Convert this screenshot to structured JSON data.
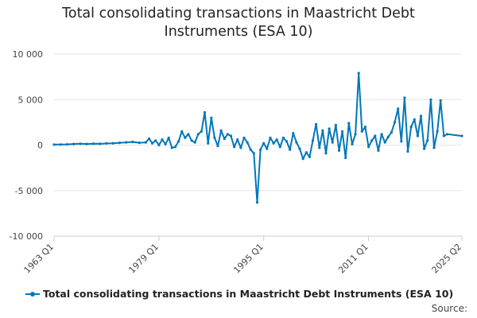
{
  "chart_data": {
    "type": "line",
    "title": "Total consolidating transactions in Maastricht Debt Instruments (ESA 10)",
    "xlabel": "",
    "ylabel": "",
    "x_range": [
      "1963 Q1",
      "2025 Q2"
    ],
    "x_ticks": [
      "1963 Q1",
      "1979 Q1",
      "1995 Q1",
      "2011 Q1",
      "2025 Q2"
    ],
    "ylim": [
      -10000,
      10000
    ],
    "y_ticks": [
      -10000,
      -5000,
      0,
      5000,
      10000
    ],
    "y_tick_labels": [
      "-10 000",
      "-5 000",
      "0",
      "5 000",
      "10 000"
    ],
    "grid": true,
    "legend_position": "bottom",
    "series": [
      {
        "name": "Total consolidating transactions in Maastricht Debt Instruments (ESA 10)",
        "color": "#0077bb",
        "points": [
          [
            "1963 Q1",
            50
          ],
          [
            "1964 Q1",
            60
          ],
          [
            "1965 Q1",
            80
          ],
          [
            "1966 Q1",
            120
          ],
          [
            "1967 Q1",
            150
          ],
          [
            "1968 Q1",
            120
          ],
          [
            "1969 Q1",
            160
          ],
          [
            "1970 Q1",
            140
          ],
          [
            "1971 Q1",
            180
          ],
          [
            "1972 Q1",
            200
          ],
          [
            "1973 Q1",
            250
          ],
          [
            "1974 Q1",
            300
          ],
          [
            "1975 Q1",
            350
          ],
          [
            "1976 Q1",
            250
          ],
          [
            "1977 Q1",
            300
          ],
          [
            "1977 Q3",
            700
          ],
          [
            "1978 Q1",
            200
          ],
          [
            "1978 Q3",
            500
          ],
          [
            "1979 Q1",
            0
          ],
          [
            "1979 Q3",
            600
          ],
          [
            "1980 Q1",
            100
          ],
          [
            "1980 Q3",
            800
          ],
          [
            "1981 Q1",
            -300
          ],
          [
            "1981 Q3",
            -200
          ],
          [
            "1982 Q1",
            400
          ],
          [
            "1982 Q3",
            1500
          ],
          [
            "1983 Q1",
            800
          ],
          [
            "1983 Q3",
            1200
          ],
          [
            "1984 Q1",
            500
          ],
          [
            "1984 Q3",
            300
          ],
          [
            "1985 Q1",
            1200
          ],
          [
            "1985 Q3",
            1500
          ],
          [
            "1986 Q1",
            3600
          ],
          [
            "1986 Q3",
            200
          ],
          [
            "1987 Q1",
            3000
          ],
          [
            "1987 Q3",
            800
          ],
          [
            "1988 Q1",
            -100
          ],
          [
            "1988 Q3",
            1600
          ],
          [
            "1989 Q1",
            700
          ],
          [
            "1989 Q3",
            1200
          ],
          [
            "1990 Q1",
            1000
          ],
          [
            "1990 Q3",
            -200
          ],
          [
            "1991 Q1",
            600
          ],
          [
            "1991 Q3",
            -300
          ],
          [
            "1992 Q1",
            800
          ],
          [
            "1992 Q3",
            300
          ],
          [
            "1993 Q1",
            -500
          ],
          [
            "1993 Q3",
            -900
          ],
          [
            "1994 Q1",
            -6300
          ],
          [
            "1994 Q3",
            -500
          ],
          [
            "1995 Q1",
            200
          ],
          [
            "1995 Q3",
            -400
          ],
          [
            "1996 Q1",
            800
          ],
          [
            "1996 Q3",
            200
          ],
          [
            "1997 Q1",
            600
          ],
          [
            "1997 Q3",
            -200
          ],
          [
            "1998 Q1",
            800
          ],
          [
            "1998 Q3",
            400
          ],
          [
            "1999 Q1",
            -500
          ],
          [
            "1999 Q3",
            1300
          ],
          [
            "2000 Q1",
            300
          ],
          [
            "2000 Q3",
            -400
          ],
          [
            "2001 Q1",
            -1500
          ],
          [
            "2001 Q3",
            -800
          ],
          [
            "2002 Q1",
            -1300
          ],
          [
            "2002 Q3",
            500
          ],
          [
            "2003 Q1",
            2300
          ],
          [
            "2003 Q3",
            -300
          ],
          [
            "2004 Q1",
            1600
          ],
          [
            "2004 Q3",
            -900
          ],
          [
            "2005 Q1",
            1800
          ],
          [
            "2005 Q3",
            300
          ],
          [
            "2006 Q1",
            2200
          ],
          [
            "2006 Q3",
            -600
          ],
          [
            "2007 Q1",
            1500
          ],
          [
            "2007 Q3",
            -1400
          ],
          [
            "2008 Q1",
            2400
          ],
          [
            "2008 Q3",
            100
          ],
          [
            "2009 Q1",
            1200
          ],
          [
            "2009 Q3",
            7900
          ],
          [
            "2010 Q1",
            1500
          ],
          [
            "2010 Q3",
            2000
          ],
          [
            "2011 Q1",
            -200
          ],
          [
            "2011 Q3",
            500
          ],
          [
            "2012 Q1",
            1000
          ],
          [
            "2012 Q3",
            -600
          ],
          [
            "2013 Q1",
            1200
          ],
          [
            "2013 Q3",
            300
          ],
          [
            "2014 Q1",
            900
          ],
          [
            "2014 Q3",
            1400
          ],
          [
            "2015 Q1",
            2500
          ],
          [
            "2015 Q3",
            4000
          ],
          [
            "2016 Q1",
            400
          ],
          [
            "2016 Q3",
            5200
          ],
          [
            "2017 Q1",
            -700
          ],
          [
            "2017 Q3",
            2000
          ],
          [
            "2018 Q1",
            2800
          ],
          [
            "2018 Q3",
            1000
          ],
          [
            "2019 Q1",
            3200
          ],
          [
            "2019 Q3",
            -400
          ],
          [
            "2020 Q1",
            500
          ],
          [
            "2020 Q3",
            5000
          ],
          [
            "2021 Q1",
            -300
          ],
          [
            "2021 Q3",
            1500
          ],
          [
            "2022 Q1",
            4900
          ],
          [
            "2022 Q3",
            1000
          ],
          [
            "2023 Q1",
            1200
          ],
          [
            "2025 Q2",
            1000
          ]
        ]
      }
    ]
  },
  "source_label": "Source:"
}
